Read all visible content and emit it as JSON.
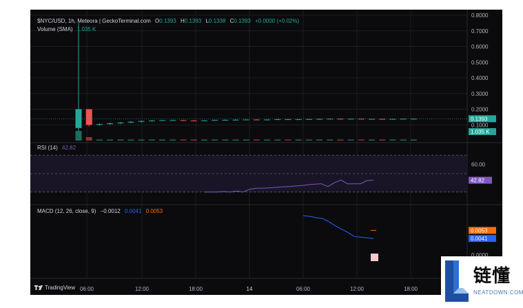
{
  "header": {
    "pair": "$NYC/USD, 1h, Meteora | GeckoTerminal.com",
    "o_label": "O",
    "o_val": "0.1393",
    "h_label": "H",
    "h_val": "0.1393",
    "l_label": "L",
    "l_val": "0.1338",
    "c_label": "C",
    "c_val": "0.1393",
    "change": "+0.0000 (+0.02%)",
    "volume_label": "Volume (SMA)",
    "volume_val": "1.035 K"
  },
  "rsi": {
    "label": "RSI (14)",
    "value": "42.82"
  },
  "macd": {
    "label": "MACD (12, 26, close, 9)",
    "hist": "−0.0012",
    "macd": "0.0041",
    "signal": "0.0053"
  },
  "brand": "TradingView",
  "watermark": {
    "cn": "链懂",
    "en": "NEATDOWN.COM"
  },
  "colors": {
    "up": "#26a69a",
    "down": "#ef5350",
    "rsi": "#7e57c2",
    "macd": "#2962ff",
    "signal": "#ff6d00",
    "bg": "#0b0b0d"
  },
  "chart_data": {
    "type": "candlestick",
    "x_ticks": [
      "06:00",
      "12:00",
      "18:00",
      "14",
      "06:00",
      "12:00",
      "18:00"
    ],
    "price_axis": {
      "ticks": [
        "0.8000",
        "0.7000",
        "0.6000",
        "0.5000",
        "0.4000",
        "0.3000",
        "0.2000",
        "0.1000"
      ],
      "ylim": [
        0,
        0.8
      ]
    },
    "price_badges": {
      "close": "0.1393",
      "volume": "1.035 K"
    },
    "candles": [
      {
        "o": 0.08,
        "h": 0.75,
        "l": 0.03,
        "c": 0.2
      },
      {
        "o": 0.2,
        "h": 0.2,
        "l": 0.09,
        "c": 0.1
      },
      {
        "o": 0.1,
        "h": 0.11,
        "l": 0.095,
        "c": 0.105
      },
      {
        "o": 0.105,
        "h": 0.115,
        "l": 0.1,
        "c": 0.11
      },
      {
        "o": 0.11,
        "h": 0.118,
        "l": 0.105,
        "c": 0.115
      },
      {
        "o": 0.115,
        "h": 0.124,
        "l": 0.11,
        "c": 0.12
      },
      {
        "o": 0.12,
        "h": 0.128,
        "l": 0.115,
        "c": 0.125
      },
      {
        "o": 0.125,
        "h": 0.13,
        "l": 0.12,
        "c": 0.128
      },
      {
        "o": 0.128,
        "h": 0.132,
        "l": 0.125,
        "c": 0.13
      },
      {
        "o": 0.13,
        "h": 0.133,
        "l": 0.127,
        "c": 0.13
      },
      {
        "o": 0.13,
        "h": 0.132,
        "l": 0.126,
        "c": 0.128
      },
      {
        "o": 0.128,
        "h": 0.131,
        "l": 0.124,
        "c": 0.126
      },
      {
        "o": 0.126,
        "h": 0.13,
        "l": 0.123,
        "c": 0.129
      },
      {
        "o": 0.129,
        "h": 0.133,
        "l": 0.127,
        "c": 0.131
      },
      {
        "o": 0.131,
        "h": 0.134,
        "l": 0.128,
        "c": 0.132
      },
      {
        "o": 0.132,
        "h": 0.135,
        "l": 0.13,
        "c": 0.133
      },
      {
        "o": 0.133,
        "h": 0.136,
        "l": 0.131,
        "c": 0.134
      },
      {
        "o": 0.134,
        "h": 0.136,
        "l": 0.13,
        "c": 0.131
      },
      {
        "o": 0.131,
        "h": 0.135,
        "l": 0.129,
        "c": 0.134
      },
      {
        "o": 0.134,
        "h": 0.138,
        "l": 0.132,
        "c": 0.136
      },
      {
        "o": 0.136,
        "h": 0.138,
        "l": 0.133,
        "c": 0.134
      },
      {
        "o": 0.134,
        "h": 0.137,
        "l": 0.131,
        "c": 0.136
      },
      {
        "o": 0.136,
        "h": 0.139,
        "l": 0.134,
        "c": 0.137
      },
      {
        "o": 0.137,
        "h": 0.14,
        "l": 0.135,
        "c": 0.138
      },
      {
        "o": 0.138,
        "h": 0.141,
        "l": 0.136,
        "c": 0.139
      },
      {
        "o": 0.139,
        "h": 0.141,
        "l": 0.135,
        "c": 0.136
      },
      {
        "o": 0.136,
        "h": 0.14,
        "l": 0.134,
        "c": 0.139
      },
      {
        "o": 0.139,
        "h": 0.142,
        "l": 0.135,
        "c": 0.136
      },
      {
        "o": 0.136,
        "h": 0.139,
        "l": 0.134,
        "c": 0.138
      },
      {
        "o": 0.138,
        "h": 0.139,
        "l": 0.134,
        "c": 0.135
      },
      {
        "o": 0.135,
        "h": 0.139,
        "l": 0.133,
        "c": 0.138
      },
      {
        "o": 0.138,
        "h": 0.14,
        "l": 0.136,
        "c": 0.139
      },
      {
        "o": 0.139,
        "h": 0.1393,
        "l": 0.1338,
        "c": 0.1393
      }
    ],
    "rsi_axis": {
      "ticks": [
        "60.00"
      ],
      "ylim": [
        20,
        80
      ],
      "bands": [
        70,
        50,
        30
      ]
    },
    "rsi_series": [
      30,
      30,
      30,
      30.5,
      30,
      31,
      30,
      33,
      34,
      34.2,
      34.5,
      35,
      35.5,
      36,
      36.5,
      37,
      38,
      38.5,
      39,
      36,
      40,
      43,
      39,
      39,
      39,
      42.5,
      42.82
    ],
    "macd_series": [
      0.0075,
      0.0074,
      0.0072,
      0.0071,
      0.0066,
      0.006,
      0.0055,
      0.005,
      0.0044,
      0.0043,
      0.0042,
      0.0041
    ],
    "macd_axis": {
      "ticks": [
        "0.0053",
        "0.0041",
        "0.0000"
      ]
    }
  }
}
